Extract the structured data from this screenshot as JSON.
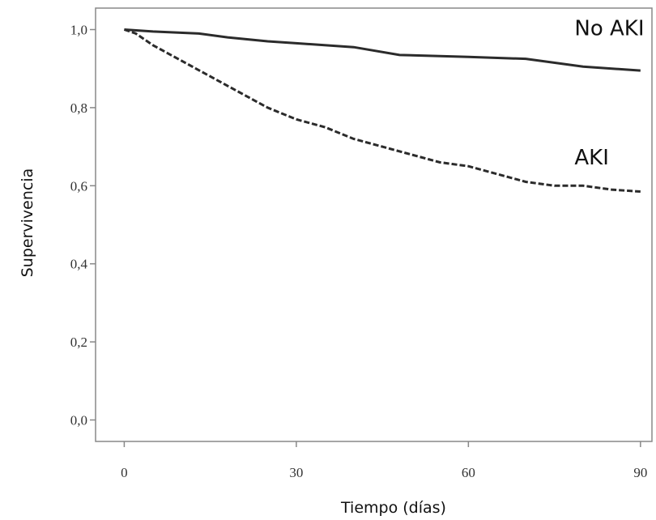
{
  "chart_data": {
    "type": "line",
    "x_label": "Tiempo (días)",
    "y_label": "Supervivencia",
    "xlim": [
      -5,
      92
    ],
    "ylim": [
      -0.055,
      1.055
    ],
    "xticks": [
      0,
      30,
      60,
      90
    ],
    "yticks": [
      {
        "value": 0,
        "label": "0,0"
      },
      {
        "value": 0.2,
        "label": "0,2"
      },
      {
        "value": 0.4,
        "label": "0,4"
      },
      {
        "value": 0.6,
        "label": "0,6"
      },
      {
        "value": 0.8,
        "label": "0,8"
      },
      {
        "value": 1,
        "label": "1,0"
      }
    ],
    "series": [
      {
        "name": "No AKI",
        "color": "#2b2b2b",
        "dash": "solid",
        "x": [
          0,
          5,
          13,
          18,
          25,
          30,
          40,
          48,
          60,
          70,
          80,
          90
        ],
        "values": [
          1.0,
          0.995,
          0.99,
          0.98,
          0.97,
          0.965,
          0.955,
          0.935,
          0.93,
          0.925,
          0.905,
          0.895
        ]
      },
      {
        "name": "AKI",
        "color": "#2b2b2b",
        "dash": "dashed",
        "x": [
          0,
          2,
          5,
          10,
          15,
          20,
          25,
          30,
          35,
          40,
          45,
          50,
          55,
          60,
          65,
          70,
          75,
          80,
          85,
          90
        ],
        "values": [
          1.0,
          0.99,
          0.96,
          0.92,
          0.88,
          0.84,
          0.8,
          0.77,
          0.75,
          0.72,
          0.7,
          0.68,
          0.66,
          0.65,
          0.63,
          0.61,
          0.6,
          0.6,
          0.59,
          0.585
        ]
      }
    ]
  }
}
